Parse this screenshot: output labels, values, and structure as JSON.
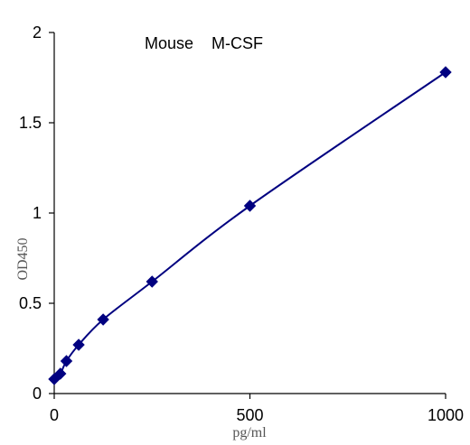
{
  "chart_data": {
    "type": "line",
    "title": "Mouse    M-CSF",
    "xlabel": "pg/ml",
    "ylabel": "OD450",
    "xlim": [
      0,
      1000
    ],
    "ylim": [
      0,
      2
    ],
    "x_ticks": [
      "0",
      "500",
      "1000"
    ],
    "y_ticks": [
      "0",
      "0.5",
      "1",
      "1.5",
      "2"
    ],
    "x_tick_values": [
      0,
      500,
      1000
    ],
    "y_tick_values": [
      0,
      0.5,
      1,
      1.5,
      2
    ],
    "grid": false,
    "line_color": "#000080",
    "marker": "diamond",
    "series": [
      {
        "x": [
          0,
          15.6,
          31.2,
          62.5,
          125,
          250,
          500,
          1000
        ],
        "y": [
          0.08,
          0.11,
          0.18,
          0.27,
          0.41,
          0.62,
          1.04,
          1.78
        ]
      }
    ]
  }
}
